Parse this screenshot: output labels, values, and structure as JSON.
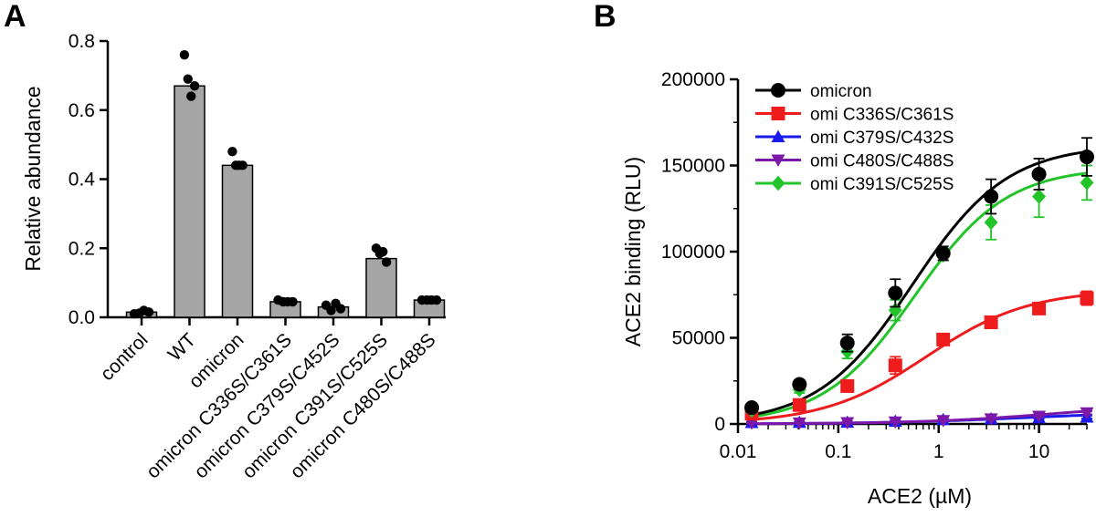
{
  "chart_data": [
    {
      "panel": "A",
      "type": "bar",
      "title": "",
      "xlabel": "",
      "ylabel": "Relative abundance",
      "ylim": [
        0,
        0.8
      ],
      "yticks": [
        "0.0",
        "0.2",
        "0.4",
        "0.6",
        "0.8"
      ],
      "categories": [
        "control",
        "WT",
        "omicron",
        "omicron C336S/C361S",
        "omicron C379S/C452S",
        "omicron C391S/C525S",
        "omicron C480S/C488S"
      ],
      "values": [
        0.015,
        0.67,
        0.44,
        0.045,
        0.03,
        0.17,
        0.05
      ],
      "points": [
        [
          0.01,
          0.012,
          0.02,
          0.015
        ],
        [
          0.76,
          0.69,
          0.64,
          0.67
        ],
        [
          0.48,
          0.44,
          0.44,
          0.44
        ],
        [
          0.05,
          0.045,
          0.045,
          0.045
        ],
        [
          0.035,
          0.02,
          0.04,
          0.025
        ],
        [
          0.2,
          0.185,
          0.19,
          0.16
        ],
        [
          0.05,
          0.05,
          0.05,
          0.05
        ]
      ],
      "bar_color": "#a6a6a6"
    },
    {
      "panel": "B",
      "type": "line",
      "xscale": "log",
      "xlabel": "ACE2 (µM)",
      "ylabel": "ACE2 binding (RLU)",
      "xlim": [
        0.01,
        30
      ],
      "ylim": [
        0,
        200000
      ],
      "xticks": [
        "0.01",
        "0.1",
        "1",
        "10"
      ],
      "yticks": [
        "0",
        "50000",
        "100000",
        "150000",
        "200000"
      ],
      "x": [
        0.0137,
        0.041,
        0.123,
        0.37,
        1.11,
        3.33,
        10,
        30
      ],
      "legend_position": "top-left",
      "series": [
        {
          "name": "omicron",
          "color": "#000000",
          "marker": "circle",
          "values": [
            9500,
            23000,
            47000,
            76000,
            99000,
            132000,
            145000,
            155000
          ],
          "errors": [
            1500,
            2000,
            5000,
            8000,
            4000,
            10000,
            9000,
            11000
          ]
        },
        {
          "name": "omi C336S/C361S",
          "color": "#ee1c1c",
          "marker": "square",
          "values": [
            6000,
            11000,
            22000,
            34000,
            49000,
            59000,
            67000,
            73000
          ],
          "errors": [
            1000,
            1500,
            2500,
            5000,
            2000,
            2000,
            3000,
            4000
          ]
        },
        {
          "name": "omi C379S/C432S",
          "color": "#1a1aee",
          "marker": "triangle-up",
          "values": [
            800,
            900,
            1000,
            1500,
            2500,
            3000,
            3500,
            4000
          ],
          "errors": [
            300,
            300,
            300,
            400,
            500,
            600,
            600,
            800
          ]
        },
        {
          "name": "omi C480S/C488S",
          "color": "#7b18a8",
          "marker": "triangle-down",
          "values": [
            500,
            600,
            800,
            1200,
            2000,
            3000,
            4500,
            6500
          ],
          "errors": [
            200,
            200,
            300,
            300,
            400,
            500,
            600,
            900
          ]
        },
        {
          "name": "omi C391S/C525S",
          "color": "#22c42a",
          "marker": "diamond",
          "values": [
            8000,
            20000,
            42000,
            66000,
            98000,
            117000,
            132000,
            140000
          ],
          "errors": [
            1500,
            2000,
            4000,
            6000,
            3000,
            10000,
            12000,
            10000
          ]
        }
      ],
      "curves": [
        {
          "name": "omicron",
          "top": 162000,
          "ec50": 0.55,
          "hill": 0.92
        },
        {
          "name": "omi C336S/C361S",
          "top": 78000,
          "ec50": 0.75,
          "hill": 0.85
        },
        {
          "name": "omi C379S/C432S",
          "top": 7500,
          "ec50": 8,
          "hill": 0.6
        },
        {
          "name": "omi C480S/C488S",
          "top": 12000,
          "ec50": 14,
          "hill": 0.65
        },
        {
          "name": "omi C391S/C525S",
          "top": 149000,
          "ec50": 0.58,
          "hill": 0.95
        }
      ]
    }
  ]
}
